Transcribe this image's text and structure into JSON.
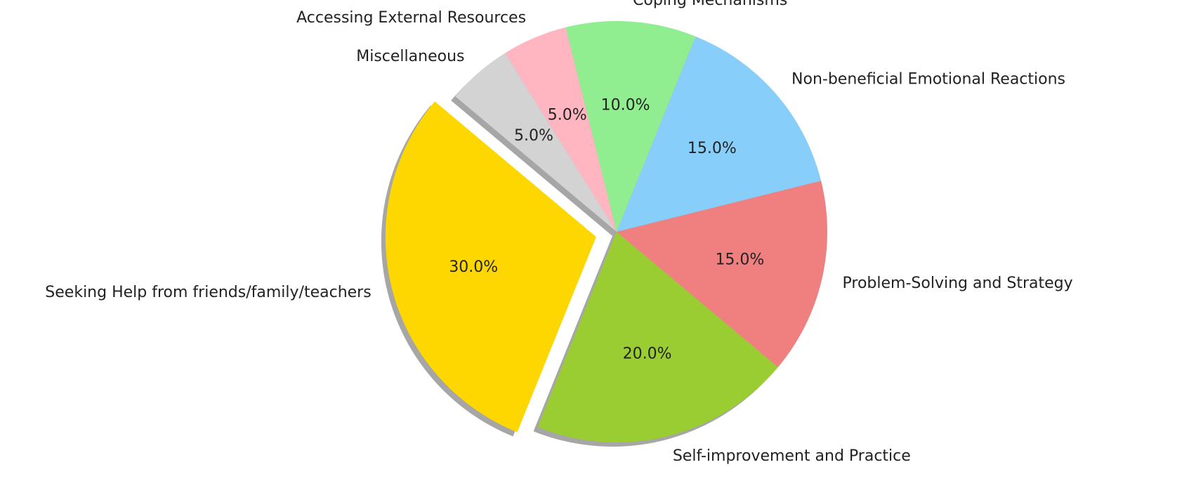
{
  "chart_data": {
    "type": "pie",
    "categories": [
      "Seeking Help from friends/family/teachers",
      "Self-improvement and Practice",
      "Problem-Solving and Strategy",
      "Non-beneficial Emotional Reactions",
      "Coping Mechanisms",
      "Accessing External Resources",
      "Miscellaneous"
    ],
    "values": [
      30,
      20,
      15,
      15,
      10,
      5,
      5
    ],
    "value_labels": [
      "30.0%",
      "20.0%",
      "15.0%",
      "15.0%",
      "10.0%",
      "5.0%",
      "5.0%"
    ],
    "colors": [
      "#ffd700",
      "#9acd32",
      "#f08080",
      "#87cefa",
      "#90ee90",
      "#ffb6c1",
      "#d3d3d3"
    ],
    "shadow": true
  }
}
